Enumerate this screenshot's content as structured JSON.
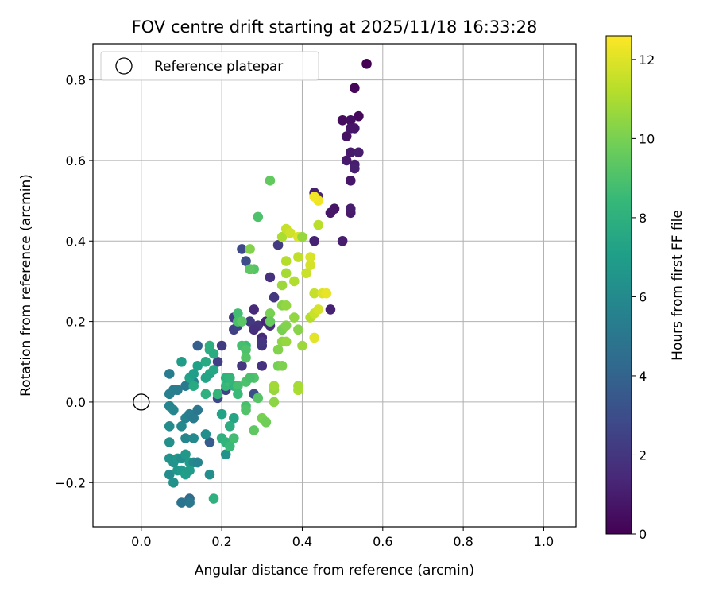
{
  "chart_data": {
    "type": "scatter",
    "title": "FOV centre drift starting at 2025/11/18 16:33:28",
    "xlabel": "Angular distance from reference (arcmin)",
    "ylabel": "Rotation from reference (arcmin)",
    "xlim": [
      -0.12,
      1.08
    ],
    "ylim": [
      -0.31,
      0.89
    ],
    "xticks": [
      0.0,
      0.2,
      0.4,
      0.6,
      0.8,
      1.0
    ],
    "xtick_labels": [
      "0.0",
      "0.2",
      "0.4",
      "0.6",
      "0.8",
      "1.0"
    ],
    "yticks": [
      -0.2,
      0.0,
      0.2,
      0.4,
      0.6,
      0.8
    ],
    "ytick_labels": [
      "−0.2",
      "0.0",
      "0.2",
      "0.4",
      "0.6",
      "0.8"
    ],
    "grid": true,
    "legend": {
      "position": "top-left",
      "entries": [
        "Reference platepar"
      ]
    },
    "reference_point": {
      "x": 0.0,
      "y": 0.0,
      "label": "Reference platepar"
    },
    "colorbar": {
      "label": "Hours from first FF file",
      "range": [
        0,
        12.6
      ],
      "ticks": [
        0,
        2,
        4,
        6,
        8,
        10,
        12
      ],
      "tick_labels": [
        "0",
        "2",
        "4",
        "6",
        "8",
        "10",
        "12"
      ],
      "colormap": [
        "#440154",
        "#482878",
        "#3e4989",
        "#31688e",
        "#26828e",
        "#1f9e89",
        "#35b779",
        "#6ece58",
        "#b5de2b",
        "#fde725"
      ]
    },
    "points": [
      [
        0.56,
        0.84,
        0.0
      ],
      [
        0.53,
        0.78,
        0.2
      ],
      [
        0.54,
        0.71,
        0.3
      ],
      [
        0.5,
        0.7,
        0.4
      ],
      [
        0.52,
        0.7,
        0.5
      ],
      [
        0.51,
        0.66,
        0.6
      ],
      [
        0.52,
        0.68,
        0.7
      ],
      [
        0.53,
        0.68,
        0.8
      ],
      [
        0.52,
        0.62,
        0.9
      ],
      [
        0.54,
        0.62,
        1.0
      ],
      [
        0.51,
        0.6,
        0.9
      ],
      [
        0.53,
        0.59,
        1.0
      ],
      [
        0.53,
        0.58,
        1.1
      ],
      [
        0.52,
        0.55,
        0.8
      ],
      [
        0.43,
        0.52,
        1.1
      ],
      [
        0.44,
        0.51,
        1.3
      ],
      [
        0.48,
        0.48,
        0.7
      ],
      [
        0.47,
        0.47,
        0.8
      ],
      [
        0.52,
        0.47,
        0.9
      ],
      [
        0.52,
        0.48,
        1.0
      ],
      [
        0.43,
        0.4,
        1.2
      ],
      [
        0.5,
        0.4,
        1.0
      ],
      [
        0.34,
        0.39,
        2.2
      ],
      [
        0.47,
        0.23,
        1.2
      ],
      [
        0.25,
        0.38,
        2.8
      ],
      [
        0.26,
        0.35,
        3.0
      ],
      [
        0.27,
        0.33,
        2.5
      ],
      [
        0.32,
        0.31,
        1.8
      ],
      [
        0.33,
        0.26,
        2.0
      ],
      [
        0.28,
        0.23,
        1.5
      ],
      [
        0.29,
        0.19,
        1.9
      ],
      [
        0.27,
        0.2,
        2.1
      ],
      [
        0.23,
        0.21,
        2.3
      ],
      [
        0.23,
        0.18,
        2.4
      ],
      [
        0.24,
        0.19,
        2.6
      ],
      [
        0.28,
        0.18,
        1.7
      ],
      [
        0.31,
        0.2,
        1.3
      ],
      [
        0.32,
        0.19,
        1.6
      ],
      [
        0.3,
        0.16,
        1.4
      ],
      [
        0.3,
        0.14,
        1.9
      ],
      [
        0.3,
        0.15,
        2.0
      ],
      [
        0.2,
        0.14,
        2.2
      ],
      [
        0.19,
        0.1,
        2.4
      ],
      [
        0.25,
        0.09,
        2.0
      ],
      [
        0.3,
        0.09,
        1.8
      ],
      [
        0.21,
        0.03,
        2.5
      ],
      [
        0.19,
        0.01,
        2.7
      ],
      [
        0.22,
        0.06,
        2.8
      ],
      [
        0.28,
        0.02,
        3.0
      ],
      [
        0.14,
        0.14,
        3.8
      ],
      [
        0.17,
        -0.1,
        3.7
      ],
      [
        0.14,
        -0.15,
        4.0
      ],
      [
        0.12,
        -0.24,
        4.4
      ],
      [
        0.1,
        -0.25,
        4.8
      ],
      [
        0.12,
        -0.25,
        5.0
      ],
      [
        0.07,
        0.07,
        5.3
      ],
      [
        0.08,
        0.03,
        5.2
      ],
      [
        0.09,
        0.03,
        5.4
      ],
      [
        0.11,
        0.04,
        5.1
      ],
      [
        0.13,
        0.05,
        5.6
      ],
      [
        0.07,
        0.02,
        5.5
      ],
      [
        0.07,
        -0.01,
        5.7
      ],
      [
        0.08,
        -0.02,
        5.8
      ],
      [
        0.1,
        -0.06,
        5.9
      ],
      [
        0.11,
        -0.04,
        5.6
      ],
      [
        0.12,
        -0.03,
        5.4
      ],
      [
        0.13,
        -0.04,
        5.2
      ],
      [
        0.14,
        -0.02,
        5.0
      ],
      [
        0.11,
        -0.09,
        5.8
      ],
      [
        0.13,
        -0.09,
        6.0
      ],
      [
        0.16,
        -0.08,
        6.2
      ],
      [
        0.07,
        -0.06,
        6.1
      ],
      [
        0.07,
        -0.1,
        6.3
      ],
      [
        0.07,
        -0.14,
        6.4
      ],
      [
        0.08,
        -0.15,
        6.5
      ],
      [
        0.09,
        -0.14,
        6.6
      ],
      [
        0.1,
        -0.14,
        6.2
      ],
      [
        0.11,
        -0.13,
        6.7
      ],
      [
        0.12,
        -0.15,
        6.8
      ],
      [
        0.13,
        -0.15,
        5.9
      ],
      [
        0.14,
        -0.15,
        5.7
      ],
      [
        0.07,
        -0.18,
        6.1
      ],
      [
        0.08,
        -0.2,
        6.4
      ],
      [
        0.09,
        -0.17,
        6.6
      ],
      [
        0.1,
        -0.17,
        6.8
      ],
      [
        0.11,
        -0.18,
        7.0
      ],
      [
        0.12,
        -0.17,
        6.9
      ],
      [
        0.1,
        0.1,
        6.9
      ],
      [
        0.12,
        0.06,
        7.2
      ],
      [
        0.13,
        0.07,
        7.0
      ],
      [
        0.14,
        0.09,
        7.1
      ],
      [
        0.16,
        0.06,
        7.3
      ],
      [
        0.17,
        0.07,
        7.4
      ],
      [
        0.18,
        0.08,
        7.5
      ],
      [
        0.16,
        0.1,
        7.6
      ],
      [
        0.17,
        0.13,
        7.8
      ],
      [
        0.18,
        0.12,
        7.7
      ],
      [
        0.17,
        0.14,
        7.9
      ],
      [
        0.16,
        0.02,
        8.0
      ],
      [
        0.13,
        0.04,
        7.6
      ],
      [
        0.17,
        -0.18,
        6.2
      ],
      [
        0.21,
        -0.13,
        6.4
      ],
      [
        0.2,
        -0.03,
        7.2
      ],
      [
        0.23,
        -0.04,
        7.4
      ],
      [
        0.22,
        -0.06,
        7.8
      ],
      [
        0.2,
        -0.09,
        8.0
      ],
      [
        0.21,
        -0.1,
        8.2
      ],
      [
        0.22,
        -0.11,
        8.5
      ],
      [
        0.23,
        -0.09,
        8.7
      ],
      [
        0.19,
        0.02,
        8.3
      ],
      [
        0.21,
        0.04,
        8.4
      ],
      [
        0.22,
        0.05,
        8.6
      ],
      [
        0.23,
        0.04,
        8.2
      ],
      [
        0.24,
        0.04,
        8.8
      ],
      [
        0.26,
        0.05,
        9.0
      ],
      [
        0.28,
        0.06,
        9.1
      ],
      [
        0.27,
        0.06,
        8.9
      ],
      [
        0.21,
        0.06,
        8.1
      ],
      [
        0.22,
        0.06,
        8.3
      ],
      [
        0.24,
        0.02,
        8.5
      ],
      [
        0.26,
        -0.01,
        8.9
      ],
      [
        0.26,
        -0.02,
        9.1
      ],
      [
        0.26,
        0.14,
        8.6
      ],
      [
        0.25,
        0.14,
        8.8
      ],
      [
        0.26,
        0.13,
        9.0
      ],
      [
        0.26,
        0.11,
        9.2
      ],
      [
        0.28,
        0.33,
        9.2
      ],
      [
        0.27,
        0.33,
        9.4
      ],
      [
        0.29,
        0.46,
        9.0
      ],
      [
        0.32,
        0.55,
        9.5
      ],
      [
        0.27,
        0.38,
        10.2
      ],
      [
        0.24,
        0.22,
        8.7
      ],
      [
        0.24,
        0.2,
        8.9
      ],
      [
        0.25,
        0.2,
        9.3
      ],
      [
        0.18,
        -0.24,
        8.0
      ],
      [
        0.29,
        0.01,
        9.2
      ],
      [
        0.28,
        -0.07,
        9.4
      ],
      [
        0.3,
        -0.04,
        10.0
      ],
      [
        0.31,
        -0.05,
        9.8
      ],
      [
        0.33,
        0.0,
        10.4
      ],
      [
        0.33,
        0.03,
        10.6
      ],
      [
        0.33,
        0.04,
        10.8
      ],
      [
        0.39,
        0.03,
        11.0
      ],
      [
        0.39,
        0.04,
        10.9
      ],
      [
        0.34,
        0.09,
        9.9
      ],
      [
        0.35,
        0.09,
        10.1
      ],
      [
        0.34,
        0.13,
        10.2
      ],
      [
        0.35,
        0.15,
        10.4
      ],
      [
        0.36,
        0.15,
        10.6
      ],
      [
        0.35,
        0.18,
        9.9
      ],
      [
        0.35,
        0.18,
        10.0
      ],
      [
        0.36,
        0.19,
        10.2
      ],
      [
        0.39,
        0.18,
        10.3
      ],
      [
        0.38,
        0.21,
        10.5
      ],
      [
        0.4,
        0.14,
        10.7
      ],
      [
        0.42,
        0.21,
        11.2
      ],
      [
        0.43,
        0.22,
        11.4
      ],
      [
        0.43,
        0.22,
        11.6
      ],
      [
        0.44,
        0.23,
        11.8
      ],
      [
        0.43,
        0.27,
        11.5
      ],
      [
        0.45,
        0.27,
        12.0
      ],
      [
        0.46,
        0.27,
        12.2
      ],
      [
        0.43,
        0.16,
        12.1
      ],
      [
        0.32,
        0.22,
        10.0
      ],
      [
        0.32,
        0.2,
        9.6
      ],
      [
        0.35,
        0.24,
        10.3
      ],
      [
        0.36,
        0.24,
        10.5
      ],
      [
        0.35,
        0.29,
        10.7
      ],
      [
        0.36,
        0.32,
        10.9
      ],
      [
        0.38,
        0.3,
        11.1
      ],
      [
        0.36,
        0.35,
        11.2
      ],
      [
        0.39,
        0.36,
        11.4
      ],
      [
        0.41,
        0.32,
        11.6
      ],
      [
        0.42,
        0.34,
        11.8
      ],
      [
        0.42,
        0.36,
        11.9
      ],
      [
        0.35,
        0.41,
        11.0
      ],
      [
        0.36,
        0.43,
        11.5
      ],
      [
        0.37,
        0.42,
        11.7
      ],
      [
        0.39,
        0.41,
        11.9
      ],
      [
        0.4,
        0.41,
        10.6
      ],
      [
        0.44,
        0.44,
        11.3
      ],
      [
        0.44,
        0.5,
        12.3
      ],
      [
        0.43,
        0.51,
        12.4
      ]
    ]
  }
}
